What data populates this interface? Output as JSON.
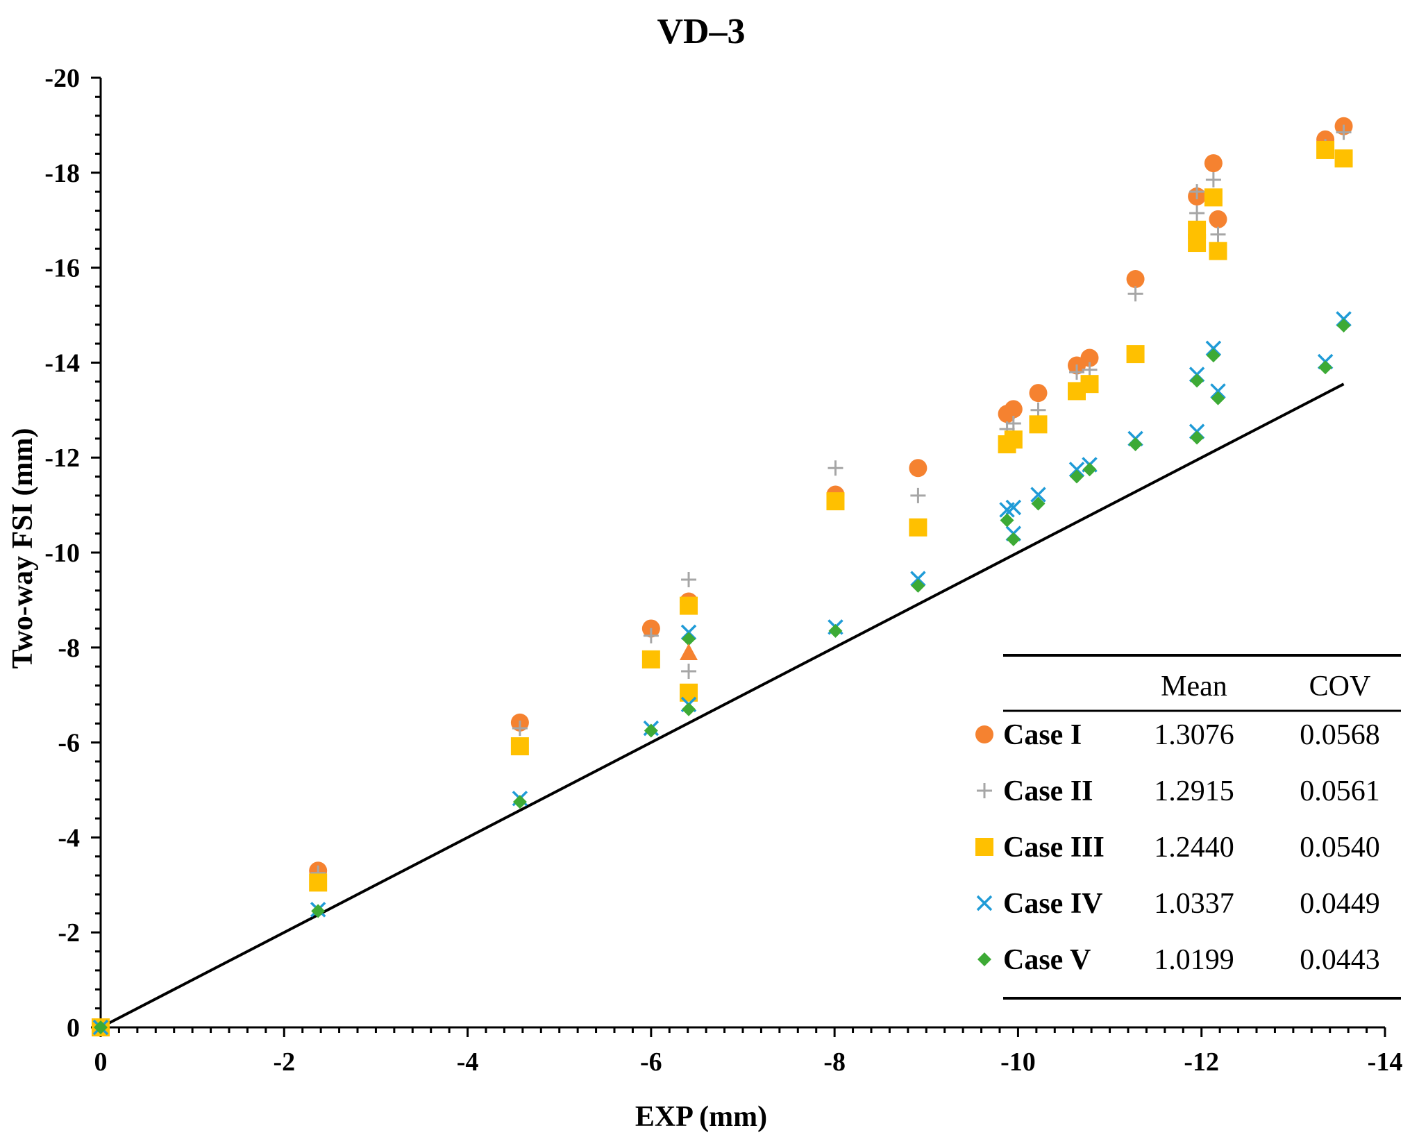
{
  "chart_data": {
    "type": "scatter",
    "title": "VD–3",
    "xlabel": "EXP (mm)",
    "ylabel": "Two-way FSI (mm)",
    "xlim": [
      0,
      -14
    ],
    "ylim": [
      0,
      -20
    ],
    "xticks": [
      0,
      -2,
      -4,
      -6,
      -8,
      -10,
      -12,
      -14
    ],
    "yticks": [
      0,
      -2,
      -4,
      -6,
      -8,
      -10,
      -12,
      -14,
      -16,
      -18,
      -20
    ],
    "xtick_labels": [
      "0",
      "-2",
      "-4",
      "-6",
      "-8",
      "-10",
      "-12",
      "-14"
    ],
    "ytick_labels": [
      "0",
      "-2",
      "-4",
      "-6",
      "-8",
      "-10",
      "-12",
      "-14",
      "-16",
      "-18",
      "-20"
    ],
    "reference_line": {
      "x": [
        0,
        -13.55
      ],
      "y": [
        0,
        -13.55
      ],
      "color": "#000000"
    },
    "legend": {
      "position": "bottom-right",
      "header_mean": "Mean",
      "header_cov": "COV"
    },
    "series": [
      {
        "name": "Case I",
        "marker": "circle",
        "color": "#F58230",
        "mean": "1.3076",
        "cov": "0.0568",
        "points": [
          [
            0,
            0
          ],
          [
            -2.37,
            -3.3
          ],
          [
            -4.57,
            -6.42
          ],
          [
            -6.0,
            -8.4
          ],
          [
            -6.41,
            -8.97
          ],
          [
            -8.01,
            -11.22
          ],
          [
            -8.91,
            -11.78
          ],
          [
            -9.88,
            -12.92
          ],
          [
            -9.95,
            -13.02
          ],
          [
            -10.22,
            -13.36
          ],
          [
            -10.64,
            -13.94
          ],
          [
            -10.78,
            -14.1
          ],
          [
            -11.28,
            -15.76
          ],
          [
            -11.95,
            -17.5
          ],
          [
            -12.13,
            -18.2
          ],
          [
            -12.18,
            -17.02
          ],
          [
            -13.35,
            -18.7
          ],
          [
            -13.55,
            -18.98
          ]
        ]
      },
      {
        "name": "Case II",
        "marker": "plus",
        "color": "#A6A6A6",
        "mean": "1.2915",
        "cov": "0.0561",
        "points": [
          [
            0,
            0
          ],
          [
            -2.37,
            -3.25
          ],
          [
            -4.57,
            -6.3
          ],
          [
            -6.0,
            -8.25
          ],
          [
            -6.41,
            -9.43
          ],
          [
            -6.41,
            -7.5
          ],
          [
            -8.01,
            -11.78
          ],
          [
            -8.91,
            -11.2
          ],
          [
            -9.88,
            -12.6
          ],
          [
            -9.95,
            -12.72
          ],
          [
            -10.22,
            -13.0
          ],
          [
            -10.64,
            -13.8
          ],
          [
            -10.78,
            -13.85
          ],
          [
            -11.28,
            -15.45
          ],
          [
            -11.95,
            -17.15
          ],
          [
            -11.95,
            -17.6
          ],
          [
            -12.13,
            -17.85
          ],
          [
            -12.18,
            -16.7
          ],
          [
            -13.35,
            -18.55
          ],
          [
            -13.55,
            -18.85
          ]
        ]
      },
      {
        "name": "Case III",
        "marker": "square",
        "color": "#FFC000",
        "mean": "1.2440",
        "cov": "0.0540",
        "points": [
          [
            0,
            0
          ],
          [
            -2.37,
            -3.05
          ],
          [
            -4.57,
            -5.92
          ],
          [
            -6.0,
            -7.75
          ],
          [
            -6.41,
            -8.88
          ],
          [
            -6.41,
            -7.05
          ],
          [
            -8.01,
            -11.08
          ],
          [
            -8.91,
            -10.53
          ],
          [
            -9.88,
            -12.28
          ],
          [
            -9.95,
            -12.38
          ],
          [
            -10.22,
            -12.7
          ],
          [
            -10.64,
            -13.4
          ],
          [
            -10.78,
            -13.55
          ],
          [
            -11.28,
            -14.18
          ],
          [
            -11.95,
            -16.8
          ],
          [
            -11.95,
            -16.52
          ],
          [
            -12.13,
            -17.48
          ],
          [
            -12.18,
            -16.35
          ],
          [
            -13.35,
            -18.48
          ],
          [
            -13.55,
            -18.3
          ]
        ]
      },
      {
        "name": "Case IV",
        "marker": "x",
        "color": "#1F9BD7",
        "mean": "1.0337",
        "cov": "0.0449",
        "points": [
          [
            0,
            0
          ],
          [
            -2.37,
            -2.48
          ],
          [
            -4.57,
            -4.82
          ],
          [
            -6.0,
            -6.3
          ],
          [
            -6.41,
            -6.8
          ],
          [
            -6.41,
            -8.32
          ],
          [
            -8.01,
            -8.43
          ],
          [
            -8.91,
            -9.45
          ],
          [
            -9.88,
            -10.9
          ],
          [
            -9.95,
            -10.95
          ],
          [
            -9.95,
            -10.4
          ],
          [
            -10.22,
            -11.22
          ],
          [
            -10.64,
            -11.75
          ],
          [
            -10.78,
            -11.85
          ],
          [
            -11.28,
            -12.4
          ],
          [
            -11.95,
            -13.75
          ],
          [
            -11.95,
            -12.55
          ],
          [
            -12.13,
            -14.3
          ],
          [
            -12.18,
            -13.4
          ],
          [
            -13.35,
            -14.02
          ],
          [
            -13.55,
            -14.92
          ]
        ]
      },
      {
        "name": "Case V",
        "marker": "diamond",
        "color": "#3DAA35",
        "mean": "1.0199",
        "cov": "0.0443",
        "points": [
          [
            0,
            0
          ],
          [
            -2.37,
            -2.45
          ],
          [
            -4.57,
            -4.75
          ],
          [
            -6.0,
            -6.25
          ],
          [
            -6.41,
            -6.7
          ],
          [
            -6.41,
            -8.18
          ],
          [
            -8.01,
            -8.35
          ],
          [
            -8.91,
            -9.3
          ],
          [
            -9.88,
            -10.68
          ],
          [
            -9.95,
            -10.28
          ],
          [
            -10.22,
            -11.03
          ],
          [
            -10.64,
            -11.6
          ],
          [
            -10.78,
            -11.75
          ],
          [
            -11.28,
            -12.28
          ],
          [
            -11.95,
            -13.62
          ],
          [
            -11.95,
            -12.42
          ],
          [
            -12.13,
            -14.15
          ],
          [
            -12.18,
            -13.25
          ],
          [
            -13.35,
            -13.9
          ],
          [
            -13.55,
            -14.78
          ]
        ]
      }
    ],
    "extra_points": [
      {
        "marker": "triangle",
        "color": "#F58230",
        "points": [
          [
            -6.41,
            -7.88
          ]
        ]
      }
    ]
  }
}
